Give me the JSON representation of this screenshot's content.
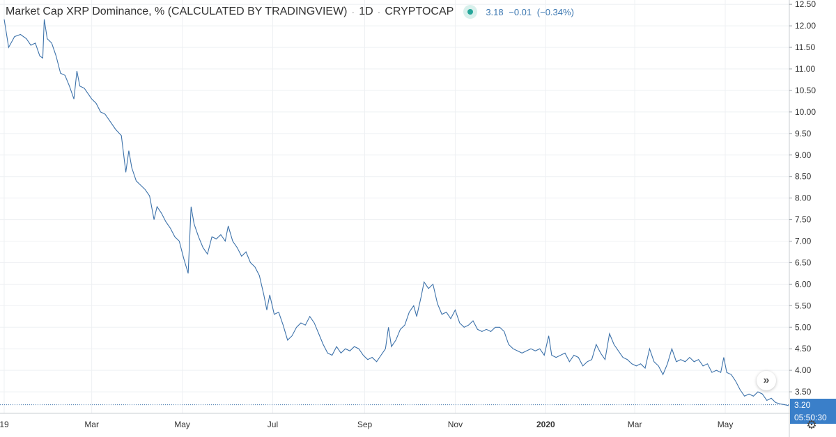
{
  "legend": {
    "title": "Market Cap XRP Dominance, % (CALCULATED BY TRADINGVIEW)",
    "interval": "1D",
    "exchange": "CRYPTOCAP",
    "last": "3.18",
    "change": "−0.01",
    "change_pct": "(−0.34%)"
  },
  "price_badges": {
    "price": "3.20",
    "countdown": "05:50:30"
  },
  "icons": {
    "scroll": "double-chevron-right-icon",
    "settings": "gear-icon",
    "status": "status-dot-icon"
  },
  "colors": {
    "line": "#3d72aa",
    "accent": "#26a69a",
    "badge": "#3a7fc9",
    "grid": "#eef0f3"
  },
  "chart_data": {
    "type": "line",
    "y_ticks": [
      "3.50",
      "4.00",
      "4.50",
      "5.00",
      "5.50",
      "6.00",
      "6.50",
      "7.00",
      "7.50",
      "8.00",
      "8.50",
      "9.00",
      "9.50",
      "10.00",
      "10.50",
      "11.00",
      "11.50",
      "12.00",
      "12.50"
    ],
    "x_ticks": [
      {
        "label": "19",
        "x": "2019-01-01"
      },
      {
        "label": "Mar",
        "x": "2019-03-01"
      },
      {
        "label": "May",
        "x": "2019-05-01"
      },
      {
        "label": "Jul",
        "x": "2019-07-01"
      },
      {
        "label": "Sep",
        "x": "2019-09-01"
      },
      {
        "label": "Nov",
        "x": "2019-11-01"
      },
      {
        "label": "2020",
        "x": "2020-01-01",
        "bold": true
      },
      {
        "label": "Mar",
        "x": "2020-03-01"
      },
      {
        "label": "May",
        "x": "2020-05-01"
      }
    ],
    "xlim": [
      "2019-01-01",
      "2020-06-16"
    ],
    "ylim": [
      3.0,
      12.6
    ],
    "grid": true,
    "price_line": 3.2,
    "series": [
      {
        "points": [
          [
            "2019-01-01",
            12.15
          ],
          [
            "2019-01-04",
            11.5
          ],
          [
            "2019-01-08",
            11.75
          ],
          [
            "2019-01-12",
            11.8
          ],
          [
            "2019-01-16",
            11.7
          ],
          [
            "2019-01-19",
            11.55
          ],
          [
            "2019-01-22",
            11.6
          ],
          [
            "2019-01-25",
            11.3
          ],
          [
            "2019-01-27",
            11.25
          ],
          [
            "2019-01-28",
            12.15
          ],
          [
            "2019-01-30",
            11.7
          ],
          [
            "2019-02-02",
            11.6
          ],
          [
            "2019-02-05",
            11.3
          ],
          [
            "2019-02-08",
            10.9
          ],
          [
            "2019-02-11",
            10.85
          ],
          [
            "2019-02-14",
            10.6
          ],
          [
            "2019-02-17",
            10.3
          ],
          [
            "2019-02-19",
            10.95
          ],
          [
            "2019-02-21",
            10.6
          ],
          [
            "2019-02-24",
            10.55
          ],
          [
            "2019-02-27",
            10.4
          ],
          [
            "2019-03-01",
            10.3
          ],
          [
            "2019-03-04",
            10.2
          ],
          [
            "2019-03-07",
            10.0
          ],
          [
            "2019-03-10",
            9.95
          ],
          [
            "2019-03-13",
            9.8
          ],
          [
            "2019-03-17",
            9.6
          ],
          [
            "2019-03-21",
            9.45
          ],
          [
            "2019-03-24",
            8.6
          ],
          [
            "2019-03-26",
            9.1
          ],
          [
            "2019-03-28",
            8.7
          ],
          [
            "2019-03-31",
            8.4
          ],
          [
            "2019-04-03",
            8.3
          ],
          [
            "2019-04-06",
            8.2
          ],
          [
            "2019-04-09",
            8.05
          ],
          [
            "2019-04-12",
            7.5
          ],
          [
            "2019-04-14",
            7.8
          ],
          [
            "2019-04-17",
            7.65
          ],
          [
            "2019-04-20",
            7.45
          ],
          [
            "2019-04-23",
            7.3
          ],
          [
            "2019-04-26",
            7.1
          ],
          [
            "2019-04-29",
            7.0
          ],
          [
            "2019-05-02",
            6.6
          ],
          [
            "2019-05-05",
            6.25
          ],
          [
            "2019-05-07",
            7.8
          ],
          [
            "2019-05-09",
            7.4
          ],
          [
            "2019-05-12",
            7.1
          ],
          [
            "2019-05-15",
            6.85
          ],
          [
            "2019-05-18",
            6.7
          ],
          [
            "2019-05-21",
            7.1
          ],
          [
            "2019-05-24",
            7.05
          ],
          [
            "2019-05-27",
            7.15
          ],
          [
            "2019-05-30",
            7.0
          ],
          [
            "2019-06-01",
            7.35
          ],
          [
            "2019-06-04",
            7.0
          ],
          [
            "2019-06-07",
            6.85
          ],
          [
            "2019-06-10",
            6.65
          ],
          [
            "2019-06-13",
            6.75
          ],
          [
            "2019-06-16",
            6.5
          ],
          [
            "2019-06-19",
            6.4
          ],
          [
            "2019-06-22",
            6.2
          ],
          [
            "2019-06-25",
            5.75
          ],
          [
            "2019-06-27",
            5.4
          ],
          [
            "2019-06-29",
            5.75
          ],
          [
            "2019-07-02",
            5.3
          ],
          [
            "2019-07-05",
            5.35
          ],
          [
            "2019-07-08",
            5.05
          ],
          [
            "2019-07-11",
            4.7
          ],
          [
            "2019-07-14",
            4.8
          ],
          [
            "2019-07-17",
            5.0
          ],
          [
            "2019-07-20",
            5.1
          ],
          [
            "2019-07-23",
            5.05
          ],
          [
            "2019-07-26",
            5.25
          ],
          [
            "2019-07-29",
            5.1
          ],
          [
            "2019-08-01",
            4.85
          ],
          [
            "2019-08-04",
            4.6
          ],
          [
            "2019-08-07",
            4.4
          ],
          [
            "2019-08-10",
            4.35
          ],
          [
            "2019-08-13",
            4.55
          ],
          [
            "2019-08-16",
            4.4
          ],
          [
            "2019-08-19",
            4.5
          ],
          [
            "2019-08-22",
            4.45
          ],
          [
            "2019-08-25",
            4.55
          ],
          [
            "2019-08-28",
            4.5
          ],
          [
            "2019-08-31",
            4.35
          ],
          [
            "2019-09-03",
            4.25
          ],
          [
            "2019-09-06",
            4.3
          ],
          [
            "2019-09-09",
            4.2
          ],
          [
            "2019-09-12",
            4.35
          ],
          [
            "2019-09-15",
            4.5
          ],
          [
            "2019-09-17",
            5.0
          ],
          [
            "2019-09-19",
            4.55
          ],
          [
            "2019-09-22",
            4.7
          ],
          [
            "2019-09-25",
            4.95
          ],
          [
            "2019-09-28",
            5.05
          ],
          [
            "2019-10-01",
            5.35
          ],
          [
            "2019-10-04",
            5.5
          ],
          [
            "2019-10-06",
            5.25
          ],
          [
            "2019-10-09",
            5.7
          ],
          [
            "2019-10-11",
            6.05
          ],
          [
            "2019-10-14",
            5.9
          ],
          [
            "2019-10-17",
            6.0
          ],
          [
            "2019-10-20",
            5.55
          ],
          [
            "2019-10-23",
            5.3
          ],
          [
            "2019-10-26",
            5.35
          ],
          [
            "2019-10-29",
            5.2
          ],
          [
            "2019-11-01",
            5.4
          ],
          [
            "2019-11-04",
            5.1
          ],
          [
            "2019-11-07",
            5.0
          ],
          [
            "2019-11-10",
            5.05
          ],
          [
            "2019-11-13",
            5.15
          ],
          [
            "2019-11-16",
            4.95
          ],
          [
            "2019-11-19",
            4.9
          ],
          [
            "2019-11-22",
            4.95
          ],
          [
            "2019-11-25",
            4.9
          ],
          [
            "2019-11-28",
            5.0
          ],
          [
            "2019-12-01",
            5.0
          ],
          [
            "2019-12-04",
            4.9
          ],
          [
            "2019-12-07",
            4.6
          ],
          [
            "2019-12-10",
            4.5
          ],
          [
            "2019-12-13",
            4.45
          ],
          [
            "2019-12-16",
            4.4
          ],
          [
            "2019-12-19",
            4.45
          ],
          [
            "2019-12-22",
            4.5
          ],
          [
            "2019-12-25",
            4.45
          ],
          [
            "2019-12-28",
            4.5
          ],
          [
            "2019-12-31",
            4.35
          ],
          [
            "2020-01-03",
            4.8
          ],
          [
            "2020-01-05",
            4.35
          ],
          [
            "2020-01-08",
            4.3
          ],
          [
            "2020-01-11",
            4.35
          ],
          [
            "2020-01-14",
            4.4
          ],
          [
            "2020-01-17",
            4.2
          ],
          [
            "2020-01-20",
            4.35
          ],
          [
            "2020-01-23",
            4.3
          ],
          [
            "2020-01-26",
            4.1
          ],
          [
            "2020-01-29",
            4.2
          ],
          [
            "2020-02-01",
            4.25
          ],
          [
            "2020-02-04",
            4.6
          ],
          [
            "2020-02-07",
            4.4
          ],
          [
            "2020-02-10",
            4.25
          ],
          [
            "2020-02-13",
            4.85
          ],
          [
            "2020-02-16",
            4.6
          ],
          [
            "2020-02-19",
            4.45
          ],
          [
            "2020-02-22",
            4.3
          ],
          [
            "2020-02-25",
            4.25
          ],
          [
            "2020-02-28",
            4.15
          ],
          [
            "2020-03-02",
            4.1
          ],
          [
            "2020-03-05",
            4.15
          ],
          [
            "2020-03-08",
            4.05
          ],
          [
            "2020-03-11",
            4.5
          ],
          [
            "2020-03-14",
            4.2
          ],
          [
            "2020-03-17",
            4.1
          ],
          [
            "2020-03-20",
            3.9
          ],
          [
            "2020-03-23",
            4.15
          ],
          [
            "2020-03-26",
            4.5
          ],
          [
            "2020-03-29",
            4.2
          ],
          [
            "2020-04-01",
            4.25
          ],
          [
            "2020-04-04",
            4.2
          ],
          [
            "2020-04-07",
            4.3
          ],
          [
            "2020-04-10",
            4.2
          ],
          [
            "2020-04-13",
            4.25
          ],
          [
            "2020-04-16",
            4.1
          ],
          [
            "2020-04-19",
            4.15
          ],
          [
            "2020-04-22",
            3.95
          ],
          [
            "2020-04-25",
            4.0
          ],
          [
            "2020-04-28",
            3.95
          ],
          [
            "2020-04-30",
            4.3
          ],
          [
            "2020-05-02",
            3.95
          ],
          [
            "2020-05-05",
            3.9
          ],
          [
            "2020-05-08",
            3.75
          ],
          [
            "2020-05-11",
            3.55
          ],
          [
            "2020-05-14",
            3.4
          ],
          [
            "2020-05-17",
            3.45
          ],
          [
            "2020-05-20",
            3.4
          ],
          [
            "2020-05-23",
            3.5
          ],
          [
            "2020-05-26",
            3.45
          ],
          [
            "2020-05-29",
            3.3
          ],
          [
            "2020-06-01",
            3.35
          ],
          [
            "2020-06-04",
            3.25
          ],
          [
            "2020-06-07",
            3.22
          ],
          [
            "2020-06-10",
            3.2
          ],
          [
            "2020-06-13",
            3.18
          ]
        ]
      }
    ]
  }
}
